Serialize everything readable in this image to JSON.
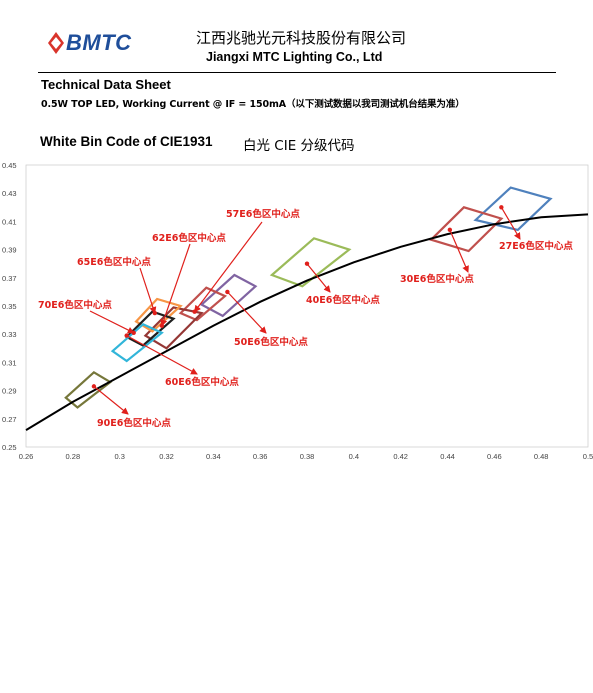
{
  "header": {
    "logo_text": "BMTC",
    "company_cn": "江西兆驰光元科技股份有限公司",
    "company_en": "Jiangxi MTC Lighting Co., Ltd",
    "colors": {
      "logo_blue": "#1f4e9a",
      "logo_red": "#d9342b"
    }
  },
  "document": {
    "title": "Technical Data Sheet",
    "subtitle": "0.5W TOP LED, Working Current @ IF = 150mA（以下测试数据以我司测试机台结果为准）"
  },
  "section": {
    "title_en": "White Bin Code of CIE1931",
    "title_cn": "白光 CIE 分级代码"
  },
  "chart_data": {
    "type": "scatter",
    "title": "",
    "xlabel": "",
    "ylabel": "",
    "xlim": [
      0.26,
      0.5
    ],
    "ylim": [
      0.25,
      0.45
    ],
    "x_ticks": [
      "0.26",
      "0.28",
      "0.3",
      "0.32",
      "0.34",
      "0.36",
      "0.38",
      "0.4",
      "0.42",
      "0.44",
      "0.46",
      "0.48",
      "0.5"
    ],
    "y_ticks": [
      "0.25",
      "0.27",
      "0.29",
      "0.31",
      "0.33",
      "0.35",
      "0.37",
      "0.39",
      "0.41",
      "0.43",
      "0.45"
    ],
    "grid": false,
    "legend": "none",
    "planckian_locus": [
      [
        0.26,
        0.262
      ],
      [
        0.28,
        0.282
      ],
      [
        0.3,
        0.3
      ],
      [
        0.32,
        0.318
      ],
      [
        0.34,
        0.336
      ],
      [
        0.36,
        0.353
      ],
      [
        0.38,
        0.368
      ],
      [
        0.4,
        0.381
      ],
      [
        0.42,
        0.392
      ],
      [
        0.44,
        0.401
      ],
      [
        0.46,
        0.408
      ],
      [
        0.48,
        0.413
      ],
      [
        0.5,
        0.415
      ]
    ],
    "bins": [
      {
        "label": "27E6色区中心点",
        "color": "#4f81bd",
        "polygon": [
          [
            0.452,
            0.411
          ],
          [
            0.467,
            0.434
          ],
          [
            0.484,
            0.426
          ],
          [
            0.47,
            0.404
          ]
        ],
        "center": [
          0.463,
          0.42
        ]
      },
      {
        "label": "30E6色区中心点",
        "color": "#c0504d",
        "polygon": [
          [
            0.433,
            0.397
          ],
          [
            0.447,
            0.42
          ],
          [
            0.463,
            0.412
          ],
          [
            0.449,
            0.389
          ]
        ],
        "center": [
          0.441,
          0.404
        ]
      },
      {
        "label": "40E6色区中心点",
        "color": "#9bbb59",
        "polygon": [
          [
            0.365,
            0.372
          ],
          [
            0.383,
            0.398
          ],
          [
            0.398,
            0.39
          ],
          [
            0.378,
            0.364
          ]
        ],
        "center": [
          0.38,
          0.38
        ]
      },
      {
        "label": "50E6色区中心点",
        "color": "#8064a2",
        "polygon": [
          [
            0.335,
            0.351
          ],
          [
            0.349,
            0.372
          ],
          [
            0.358,
            0.364
          ],
          [
            0.344,
            0.343
          ]
        ],
        "center": [
          0.346,
          0.36
        ]
      },
      {
        "label": "57E6色区中心点",
        "color": "#c0504d",
        "polygon": [
          [
            0.326,
            0.345
          ],
          [
            0.337,
            0.363
          ],
          [
            0.345,
            0.357
          ],
          [
            0.333,
            0.34
          ]
        ],
        "center": [
          0.332,
          0.346
        ]
      },
      {
        "label": "62E6色区中心点",
        "color": "#953735",
        "polygon": [
          [
            0.311,
            0.329
          ],
          [
            0.323,
            0.349
          ],
          [
            0.335,
            0.345
          ],
          [
            0.32,
            0.32
          ]
        ],
        "center": [
          0.318,
          0.336
        ]
      },
      {
        "label": "65E6色区中心点",
        "color": "#f79646",
        "polygon": [
          [
            0.307,
            0.339
          ],
          [
            0.316,
            0.355
          ],
          [
            0.326,
            0.35
          ],
          [
            0.314,
            0.332
          ]
        ],
        "center": [
          0.315,
          0.345
        ]
      },
      {
        "label": "70E6色区中心点",
        "color": "#1f1f1f",
        "polygon": [
          [
            0.303,
            0.328
          ],
          [
            0.314,
            0.346
          ],
          [
            0.323,
            0.341
          ],
          [
            0.31,
            0.322
          ]
        ],
        "center": [
          0.306,
          0.331
        ]
      },
      {
        "label": "60E6色区中心点",
        "color": "#31b5d9",
        "polygon": [
          [
            0.297,
            0.318
          ],
          [
            0.31,
            0.337
          ],
          [
            0.318,
            0.331
          ],
          [
            0.303,
            0.311
          ]
        ],
        "center": [
          0.303,
          0.329
        ]
      },
      {
        "label": "90E6色区中心点",
        "color": "#76773a",
        "polygon": [
          [
            0.277,
            0.285
          ],
          [
            0.289,
            0.303
          ],
          [
            0.296,
            0.296
          ],
          [
            0.282,
            0.278
          ]
        ],
        "center": [
          0.289,
          0.293
        ]
      }
    ]
  }
}
